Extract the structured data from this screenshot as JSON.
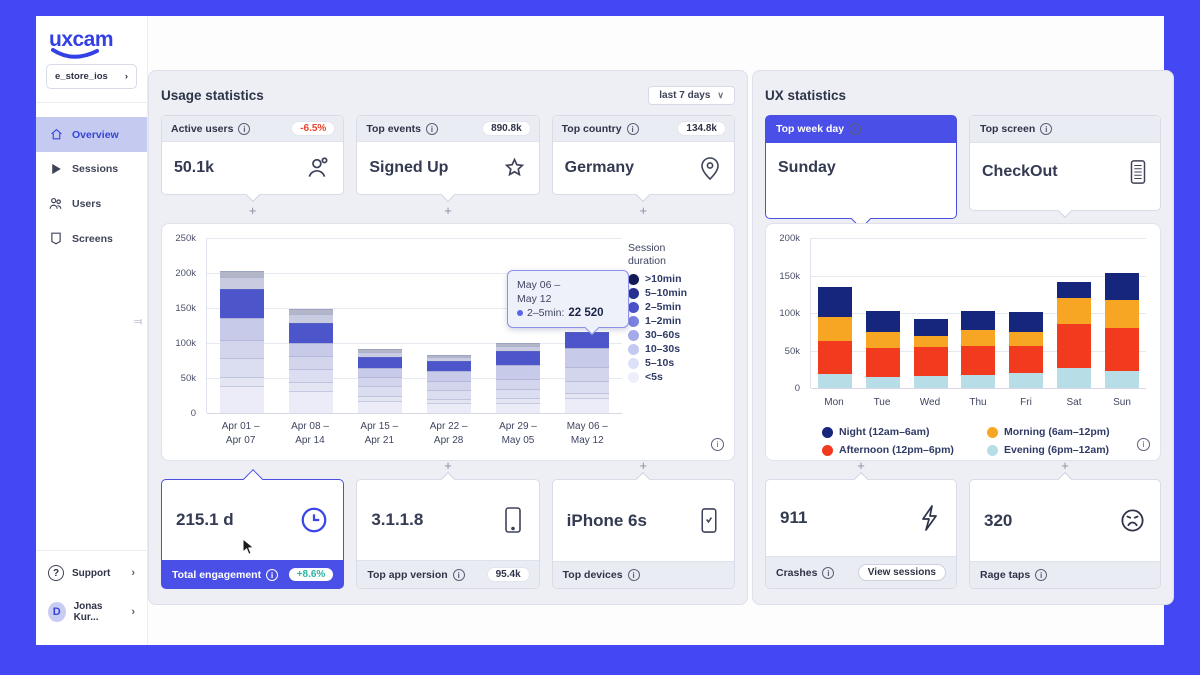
{
  "frame_color": "#4348f4",
  "sidebar": {
    "logo": "uxcam",
    "project_selector": {
      "label": "e_store_ios",
      "chevron": "›"
    },
    "items": [
      {
        "label": "Overview",
        "active": true
      },
      {
        "label": "Sessions",
        "active": false
      },
      {
        "label": "Users",
        "active": false
      },
      {
        "label": "Screens",
        "active": false
      }
    ],
    "support_label": "Support",
    "user": {
      "initial": "D",
      "name": "Jonas Kur...",
      "chevron": "›"
    }
  },
  "usage": {
    "title": "Usage statistics",
    "range_selector": "last 7 days",
    "top_cards": [
      {
        "label": "Active users",
        "badge": "-6.5%",
        "value": "50.1k",
        "icon": "user-icon"
      },
      {
        "label": "Top events",
        "badge": "890.8k",
        "value": "Signed Up",
        "icon": "star-icon"
      },
      {
        "label": "Top country",
        "badge": "134.8k",
        "value": "Germany",
        "icon": "location-pin-icon"
      }
    ],
    "bottom_cards": [
      {
        "value": "215.1 d",
        "label": "Total engagement",
        "badge": "+8.6%",
        "icon": "clock-icon",
        "selected": true
      },
      {
        "value": "3.1.1.8",
        "label": "Top app version",
        "badge": "95.4k",
        "icon": "phone-icon",
        "selected": false
      },
      {
        "value": "iPhone 6s",
        "label": "Top devices",
        "badge": "",
        "icon": "phone-check-icon",
        "selected": false
      }
    ],
    "plus_sign": "+"
  },
  "ux": {
    "title": "UX statistics",
    "top_cards": [
      {
        "label": "Top week day",
        "value": "Sunday",
        "selected": true
      },
      {
        "label": "Top screen",
        "value": "CheckOut",
        "icon": "checkout-screen-icon",
        "selected": false
      }
    ],
    "bottom_cards": [
      {
        "value": "911",
        "label": "Crashes",
        "button": "View sessions",
        "icon": "lightning-bolt-icon"
      },
      {
        "value": "320",
        "label": "Rage taps",
        "icon": "rage-face-icon"
      }
    ],
    "plus_sign": "+"
  },
  "chart_data": [
    {
      "type": "bar",
      "stacked": true,
      "title": "Sessions by week and session duration",
      "values_unit": "thousands",
      "ylim": [
        0,
        250000
      ],
      "yticks": [
        "250k",
        "200k",
        "150k",
        "100k",
        "50k",
        "0"
      ],
      "grid": true,
      "categories": [
        [
          "Apr 01 –",
          "Apr 07"
        ],
        [
          "Apr 08 –",
          "Apr 14"
        ],
        [
          "Apr 15 –",
          "Apr 21"
        ],
        [
          "Apr 22 –",
          "Apr 28"
        ],
        [
          "Apr 29 –",
          "May 05"
        ],
        [
          "May 06 –",
          "May 12"
        ]
      ],
      "series": [
        {
          "name": "<5s",
          "color": "#ebecf7",
          "values": [
            38,
            32,
            17,
            14,
            15,
            21
          ]
        },
        {
          "name": "5–10s",
          "color": "#e3e5f3",
          "values": [
            14,
            12,
            7,
            6,
            6,
            8
          ]
        },
        {
          "name": "10–30s",
          "color": "#dbddf0",
          "values": [
            26,
            19,
            14,
            13,
            14,
            17
          ]
        },
        {
          "name": "30–60s",
          "color": "#d2d5ec",
          "values": [
            26,
            18,
            13,
            13,
            14,
            20
          ]
        },
        {
          "name": "1–2min",
          "color": "#c7cae8",
          "values": [
            32,
            19,
            13,
            14,
            20,
            27
          ]
        },
        {
          "name": "2–5min",
          "color": "#4d55cb",
          "values": [
            41,
            28,
            16,
            14,
            19,
            22.5
          ]
        },
        {
          "name": "5–10min",
          "color": "#c9cce0",
          "values": [
            18,
            13,
            7,
            6,
            8,
            0
          ]
        },
        {
          "name": ">10min",
          "color": "#b3b6c6",
          "values": [
            8,
            7,
            4,
            3,
            4,
            0
          ]
        }
      ],
      "legend_title": "Session duration",
      "legend_position": "right",
      "legend": [
        {
          "name": ">10min",
          "color": "#131a56"
        },
        {
          "name": "5–10min",
          "color": "#27308f"
        },
        {
          "name": "2–5min",
          "color": "#4a52c8"
        },
        {
          "name": "1–2min",
          "color": "#7b82e0"
        },
        {
          "name": "30–60s",
          "color": "#a5aae9"
        },
        {
          "name": "10–30s",
          "color": "#c5c9f1"
        },
        {
          "name": "5–10s",
          "color": "#dde0f8"
        },
        {
          "name": "<5s",
          "color": "#eceefb"
        }
      ],
      "tooltip": {
        "period_line1": "May 06 –",
        "period_line2": "May 12",
        "label": "2–5min:",
        "value": "22 520"
      }
    },
    {
      "type": "bar",
      "stacked": true,
      "title": "Sessions by weekday and time of day",
      "values_unit": "thousands",
      "ylim": [
        0,
        200000
      ],
      "yticks": [
        "200k",
        "150k",
        "100k",
        "50k",
        "0"
      ],
      "grid": true,
      "categories": [
        "Mon",
        "Tue",
        "Wed",
        "Thu",
        "Fri",
        "Sat",
        "Sun"
      ],
      "series": [
        {
          "name": "Evening (6pm–12am)",
          "color": "#b7dde7",
          "values": [
            19,
            15,
            16,
            17,
            20,
            27,
            23
          ]
        },
        {
          "name": "Afternoon (12pm–6pm)",
          "color": "#f23a1f",
          "values": [
            44,
            39,
            39,
            39,
            36,
            58,
            57
          ]
        },
        {
          "name": "Morning (6am–12pm)",
          "color": "#f6a623",
          "values": [
            32,
            21,
            15,
            21,
            19,
            35,
            38
          ]
        },
        {
          "name": "Night (12am–6am)",
          "color": "#16267d",
          "values": [
            40,
            28,
            22,
            26,
            26,
            21,
            36
          ]
        }
      ],
      "legend_position": "bottom",
      "legend": [
        {
          "name": "Night (12am–6am)",
          "color": "#16267d"
        },
        {
          "name": "Morning (6am–12pm)",
          "color": "#f6a623"
        },
        {
          "name": "Afternoon (12pm–6pm)",
          "color": "#f23a1f"
        },
        {
          "name": "Evening (6pm–12am)",
          "color": "#b7dde7"
        }
      ]
    }
  ]
}
